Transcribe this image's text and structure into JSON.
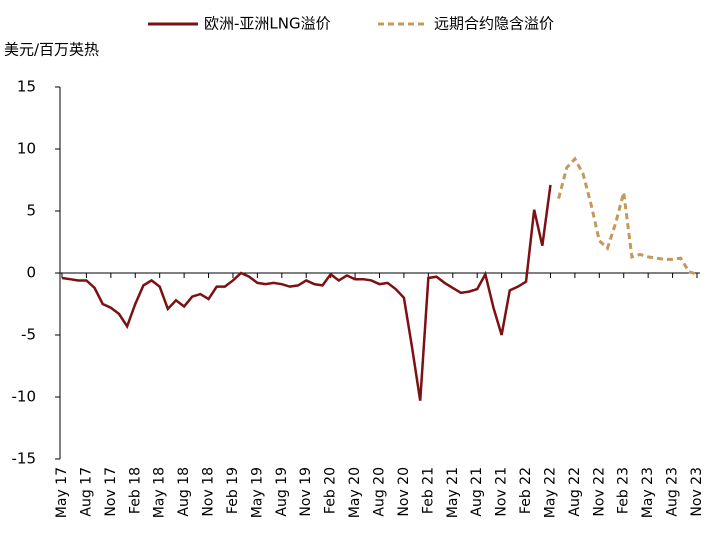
{
  "chart_data": {
    "type": "line",
    "y_label": "美元/百万英热",
    "categories": [
      "May 17",
      null,
      null,
      "Aug 17",
      null,
      null,
      "Nov 17",
      null,
      null,
      "Feb 18",
      null,
      null,
      "May 18",
      null,
      null,
      "Aug 18",
      null,
      null,
      "Nov 18",
      null,
      null,
      "Feb 19",
      null,
      null,
      "May 19",
      null,
      null,
      "Aug 19",
      null,
      null,
      "Nov 19",
      null,
      null,
      "Feb 20",
      null,
      null,
      "May 20",
      null,
      null,
      "Aug 20",
      null,
      null,
      "Nov 20",
      null,
      null,
      "Feb 21",
      null,
      null,
      "May 21",
      null,
      null,
      "Aug 21",
      null,
      null,
      "Nov 21",
      null,
      null,
      "Feb 22",
      null,
      null,
      "May 22",
      null,
      null,
      "Aug 22",
      null,
      null,
      "Nov 22",
      null,
      null,
      "Feb 23",
      null,
      null,
      "May 23",
      null,
      null,
      "Aug 23",
      null,
      null,
      "Nov 23"
    ],
    "series": [
      {
        "name": "欧洲-亚洲LNG溢价",
        "color": "#7b1113",
        "dashed": false,
        "values": [
          -0.4,
          -0.5,
          -0.6,
          -0.6,
          -1.2,
          -2.5,
          -2.8,
          -3.3,
          -4.3,
          -2.5,
          -1.0,
          -0.6,
          -1.1,
          -2.9,
          -2.2,
          -2.7,
          -1.9,
          -1.7,
          -2.1,
          -1.1,
          -1.1,
          -0.6,
          0.0,
          -0.3,
          -0.8,
          -0.9,
          -0.8,
          -0.9,
          -1.1,
          -1.0,
          -0.6,
          -0.9,
          -1.0,
          -0.1,
          -0.6,
          -0.2,
          -0.5,
          -0.5,
          -0.6,
          -0.9,
          -0.8,
          -1.3,
          -2.0,
          -6.0,
          -10.3,
          -0.4,
          -0.3,
          -0.8,
          -1.2,
          -1.6,
          -1.5,
          -1.3,
          -0.1,
          -2.8,
          -5.0,
          -1.4,
          -1.1,
          -0.7,
          5.1,
          2.2,
          7.1,
          null,
          null,
          null,
          null,
          null,
          null,
          null,
          null,
          null,
          null,
          null,
          null,
          null,
          null,
          null,
          null,
          null,
          null
        ]
      },
      {
        "name": "远期合约隐含溢价",
        "color": "#c49a5a",
        "dashed": true,
        "values": [
          null,
          null,
          null,
          null,
          null,
          null,
          null,
          null,
          null,
          null,
          null,
          null,
          null,
          null,
          null,
          null,
          null,
          null,
          null,
          null,
          null,
          null,
          null,
          null,
          null,
          null,
          null,
          null,
          null,
          null,
          null,
          null,
          null,
          null,
          null,
          null,
          null,
          null,
          null,
          null,
          null,
          null,
          null,
          null,
          null,
          null,
          null,
          null,
          null,
          null,
          null,
          null,
          null,
          null,
          null,
          null,
          null,
          null,
          null,
          null,
          null,
          6.0,
          8.5,
          9.2,
          8.0,
          5.5,
          2.6,
          2.0,
          4.0,
          6.5,
          1.3,
          1.5,
          1.3,
          1.2,
          1.1,
          1.1,
          1.2,
          0.1,
          -0.1
        ]
      }
    ],
    "ylim": [
      -15,
      15
    ],
    "yticks": [
      -15,
      -10,
      -5,
      0,
      5,
      10,
      15
    ]
  }
}
